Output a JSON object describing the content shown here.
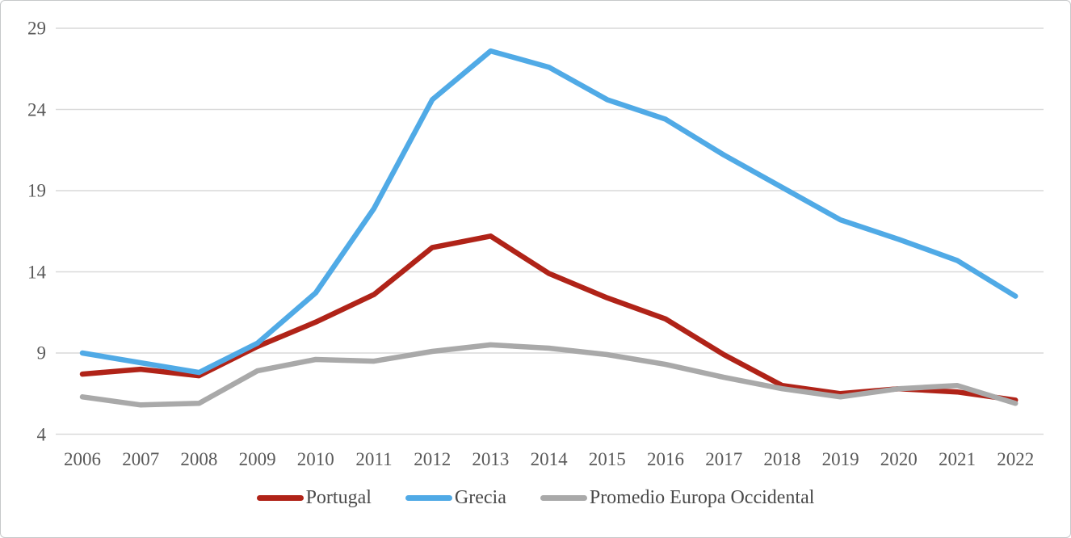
{
  "chart_data": {
    "type": "line",
    "title": "",
    "xlabel": "",
    "ylabel": "",
    "categories": [
      "2006",
      "2007",
      "2008",
      "2009",
      "2010",
      "2011",
      "2012",
      "2013",
      "2014",
      "2015",
      "2016",
      "2017",
      "2018",
      "2019",
      "2020",
      "2021",
      "2022"
    ],
    "series": [
      {
        "name": "Portugal",
        "color": "#b02318",
        "values": [
          7.7,
          8.0,
          7.6,
          9.4,
          10.9,
          12.6,
          15.5,
          16.2,
          13.9,
          12.4,
          11.1,
          8.9,
          7.0,
          6.5,
          6.8,
          6.6,
          6.1
        ]
      },
      {
        "name": "Grecia",
        "color": "#50aae6",
        "values": [
          9.0,
          8.4,
          7.8,
          9.6,
          12.7,
          17.9,
          24.6,
          27.6,
          26.6,
          24.6,
          23.4,
          21.2,
          19.2,
          17.2,
          16.0,
          14.7,
          12.5
        ]
      },
      {
        "name": "Promedio Europa Occidental",
        "color": "#a9a9a9",
        "values": [
          6.3,
          5.8,
          5.9,
          7.9,
          8.6,
          8.5,
          9.1,
          9.5,
          9.3,
          8.9,
          8.3,
          7.5,
          6.8,
          6.3,
          6.8,
          7.0,
          5.9
        ]
      }
    ],
    "ylim": [
      4,
      29
    ],
    "yticks": [
      4,
      9,
      14,
      19,
      24,
      29
    ],
    "grid": true,
    "gridline_color": "#d9d9d9",
    "tick_color": "#595959",
    "legend_position": "bottom"
  }
}
